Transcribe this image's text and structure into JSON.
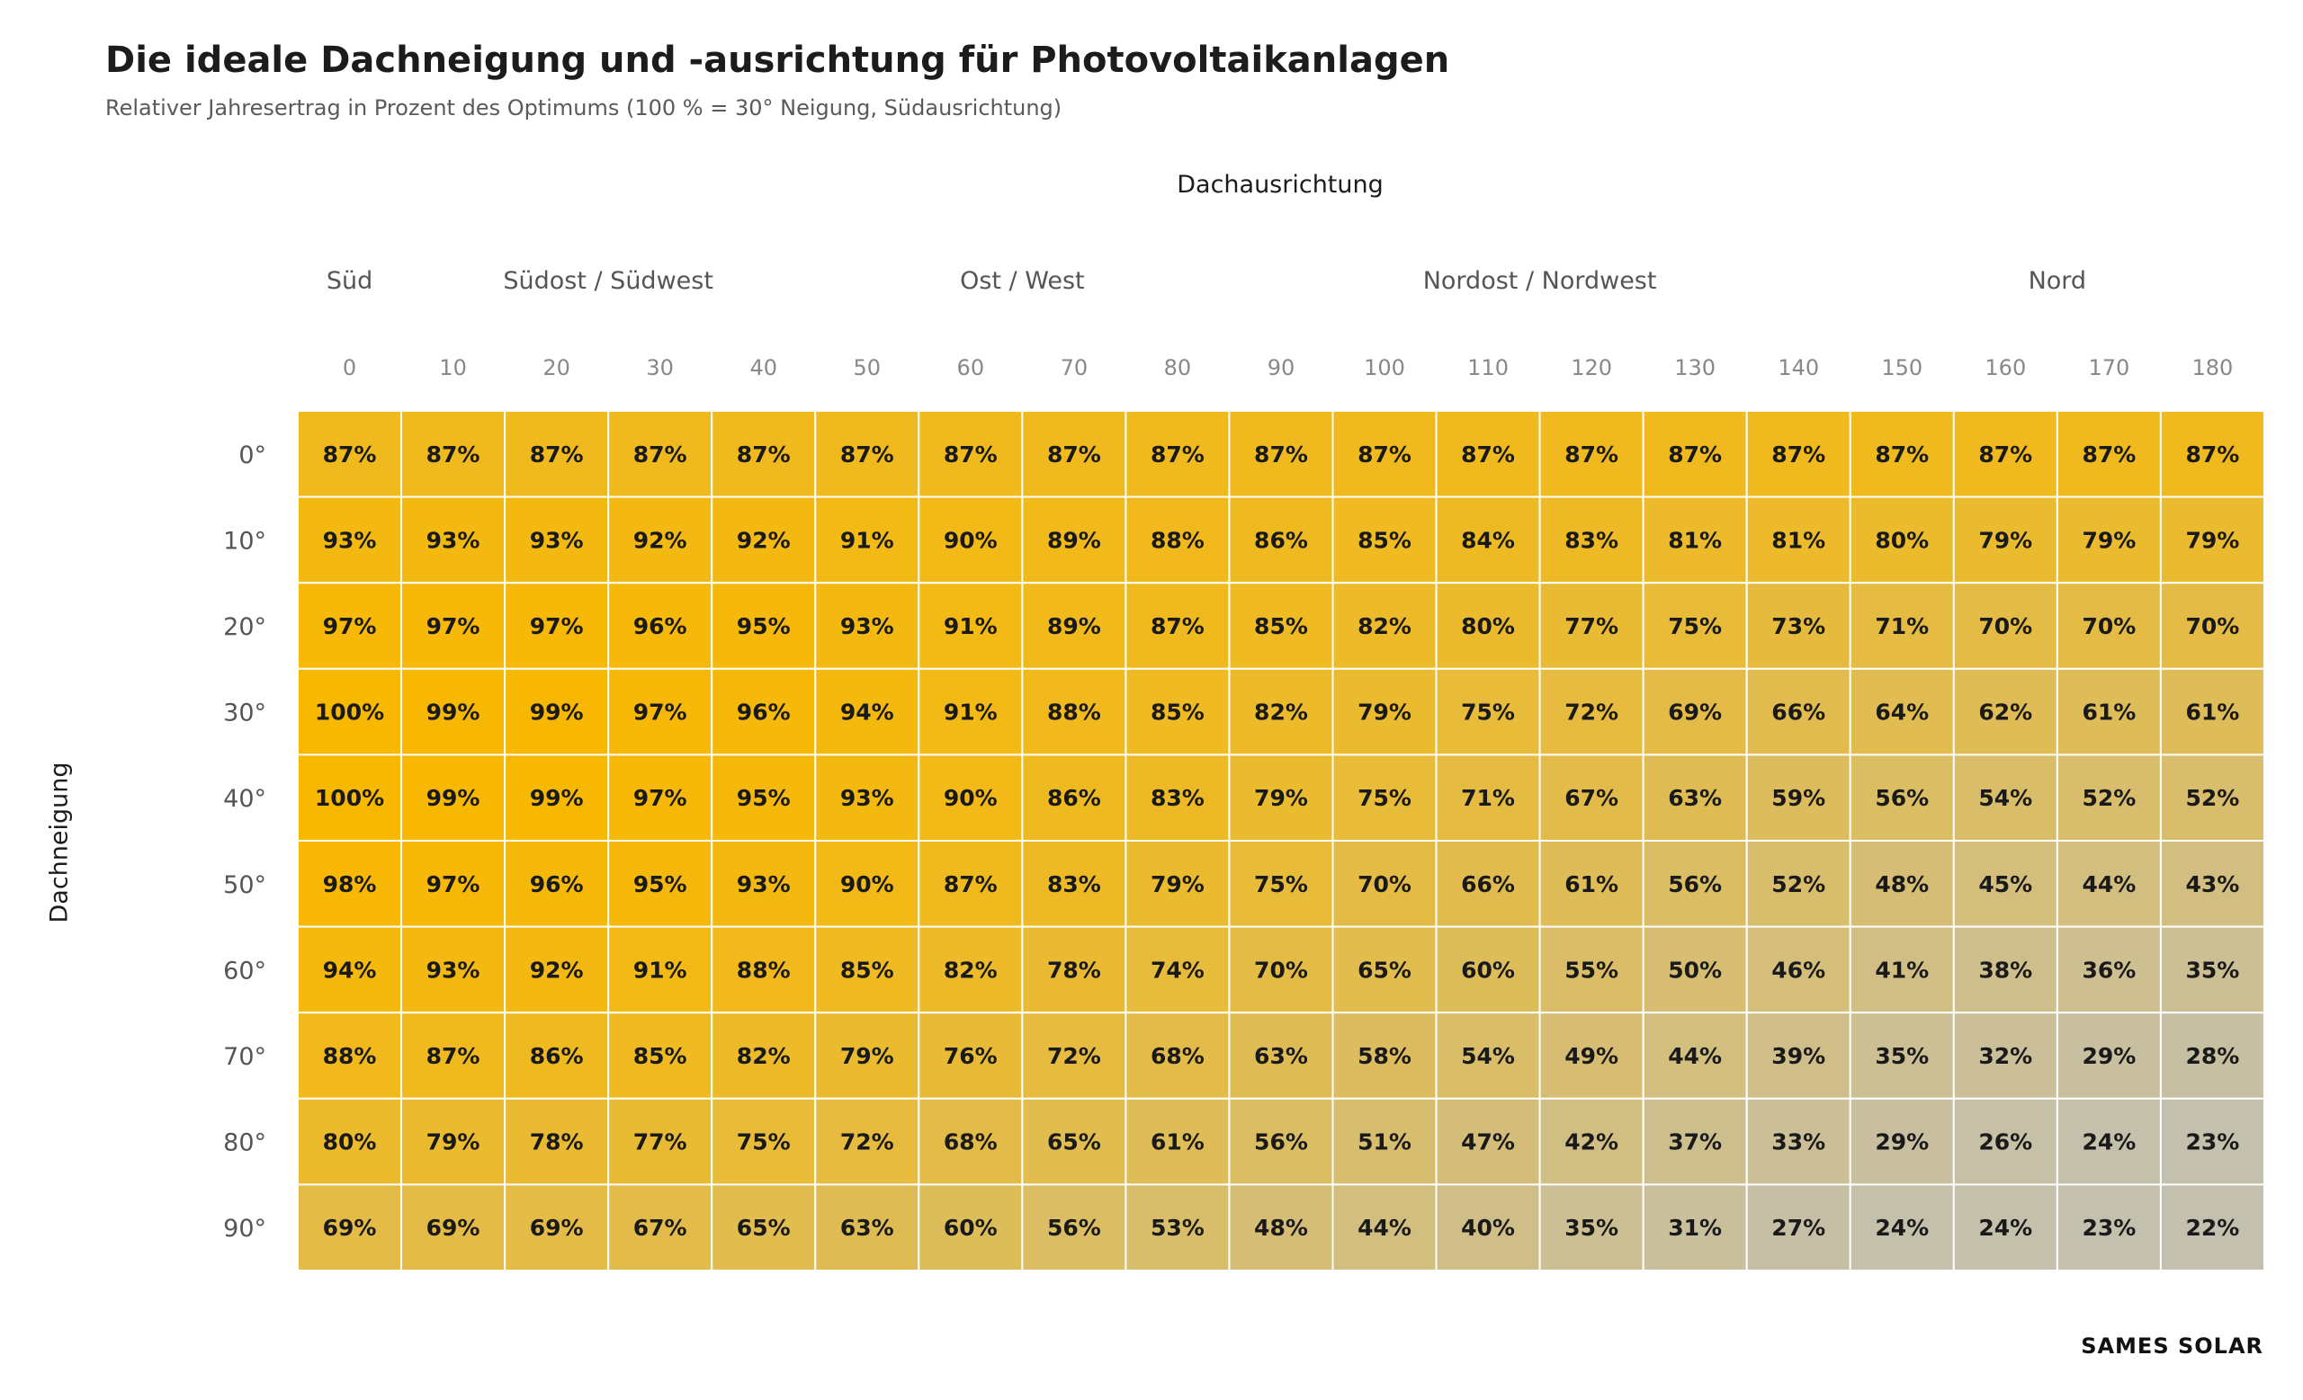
{
  "title": "Die ideale Dachneigung und -ausrichtung für Photovoltaikanlagen",
  "subtitle": "Relativer Jahresertrag in Prozent des Optimums (100 % = 30° Neigung, Südausrichtung)",
  "brand": "SAMES SOLAR",
  "colors": {
    "high": "#f9b800",
    "low": "#c3c0b0",
    "cell_border": "#ffffff",
    "text": "#1a1a1a"
  },
  "chart_data": {
    "type": "heatmap",
    "xlabel": "Dachausrichtung",
    "ylabel": "Dachneigung",
    "direction_groups": [
      {
        "label": "Süd",
        "at": 0
      },
      {
        "label": "Südost / Südwest",
        "at": 25
      },
      {
        "label": "Ost / West",
        "at": 65
      },
      {
        "label": "Nordost / Nordwest",
        "at": 115
      },
      {
        "label": "Nord",
        "at": 165
      }
    ],
    "x": [
      "0",
      "10",
      "20",
      "30",
      "40",
      "50",
      "60",
      "70",
      "80",
      "90",
      "100",
      "110",
      "120",
      "130",
      "140",
      "150",
      "160",
      "170",
      "180"
    ],
    "y": [
      "0°",
      "10°",
      "20°",
      "30°",
      "40°",
      "50°",
      "60°",
      "70°",
      "80°",
      "90°"
    ],
    "values": [
      [
        87,
        87,
        87,
        87,
        87,
        87,
        87,
        87,
        87,
        87,
        87,
        87,
        87,
        87,
        87,
        87,
        87,
        87,
        87
      ],
      [
        93,
        93,
        93,
        92,
        92,
        91,
        90,
        89,
        88,
        86,
        85,
        84,
        83,
        81,
        81,
        80,
        79,
        79,
        79
      ],
      [
        97,
        97,
        97,
        96,
        95,
        93,
        91,
        89,
        87,
        85,
        82,
        80,
        77,
        75,
        73,
        71,
        70,
        70,
        70
      ],
      [
        100,
        99,
        99,
        97,
        96,
        94,
        91,
        88,
        85,
        82,
        79,
        75,
        72,
        69,
        66,
        64,
        62,
        61,
        61
      ],
      [
        100,
        99,
        99,
        97,
        95,
        93,
        90,
        86,
        83,
        79,
        75,
        71,
        67,
        63,
        59,
        56,
        54,
        52,
        52
      ],
      [
        98,
        97,
        96,
        95,
        93,
        90,
        87,
        83,
        79,
        75,
        70,
        66,
        61,
        56,
        52,
        48,
        45,
        44,
        43
      ],
      [
        94,
        93,
        92,
        91,
        88,
        85,
        82,
        78,
        74,
        70,
        65,
        60,
        55,
        50,
        46,
        41,
        38,
        36,
        35
      ],
      [
        88,
        87,
        86,
        85,
        82,
        79,
        76,
        72,
        68,
        63,
        58,
        54,
        49,
        44,
        39,
        35,
        32,
        29,
        28
      ],
      [
        80,
        79,
        78,
        77,
        75,
        72,
        68,
        65,
        61,
        56,
        51,
        47,
        42,
        37,
        33,
        29,
        26,
        24,
        23
      ],
      [
        69,
        69,
        69,
        67,
        65,
        63,
        60,
        56,
        53,
        48,
        44,
        40,
        35,
        31,
        27,
        24,
        24,
        23,
        22
      ]
    ],
    "value_suffix": "%",
    "value_range": [
      22,
      100
    ]
  }
}
